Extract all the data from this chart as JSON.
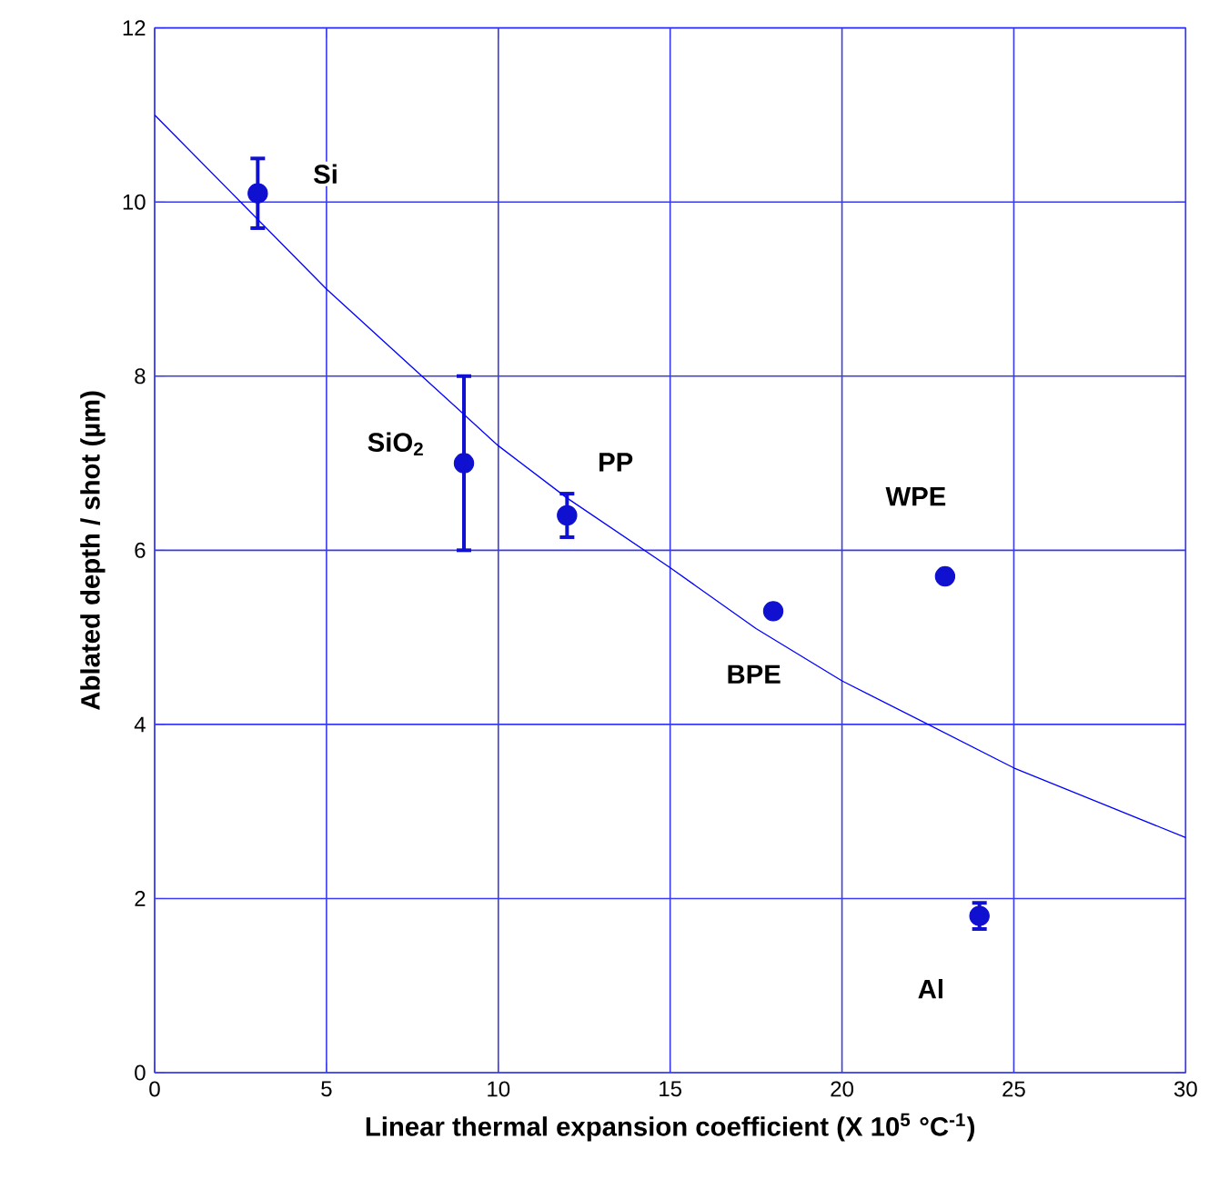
{
  "chart_data": {
    "type": "scatter",
    "xlabel": "Linear thermal expansion coefficient  (X 10$^{5}$ °C$^{-1}$)",
    "ylabel": "Ablated depth / shot  (µm)",
    "xlim": [
      0,
      30
    ],
    "ylim": [
      0,
      12
    ],
    "xticks": [
      0,
      5,
      10,
      15,
      20,
      25,
      30
    ],
    "yticks": [
      0,
      2,
      4,
      6,
      8,
      10,
      12
    ],
    "grid": true,
    "marker": "circle",
    "series": [
      {
        "color": "#1010d0",
        "x": [
          3,
          9,
          12,
          18,
          23,
          24
        ],
        "values": [
          10.1,
          7.0,
          6.4,
          5.3,
          5.7,
          1.8
        ],
        "errors": [
          0.4,
          1.0,
          0.25,
          null,
          null,
          0.15
        ]
      },
      {
        "type": "line",
        "color": "#0000ff",
        "marker": "none",
        "line_style": "solid",
        "x": [
          0,
          2.5,
          5,
          7.5,
          10,
          12,
          15,
          17.5,
          20,
          22.5,
          25,
          27.5,
          30
        ],
        "values": [
          11.0,
          10.0,
          9.0,
          8.1,
          7.2,
          6.6,
          5.8,
          5.1,
          4.5,
          4.0,
          3.5,
          3.1,
          2.7
        ]
      }
    ],
    "annotations": [
      {
        "text": "Si",
        "x": 3,
        "y": 10.1
      },
      {
        "text": "SiO$_{2}$",
        "x": 9,
        "y": 7.0
      },
      {
        "text": "PP",
        "x": 12,
        "y": 6.4
      },
      {
        "text": "BPE",
        "x": 18,
        "y": 5.3
      },
      {
        "text": "WPE",
        "x": 23,
        "y": 5.7
      },
      {
        "text": "Al",
        "x": 24,
        "y": 1.8
      }
    ]
  }
}
